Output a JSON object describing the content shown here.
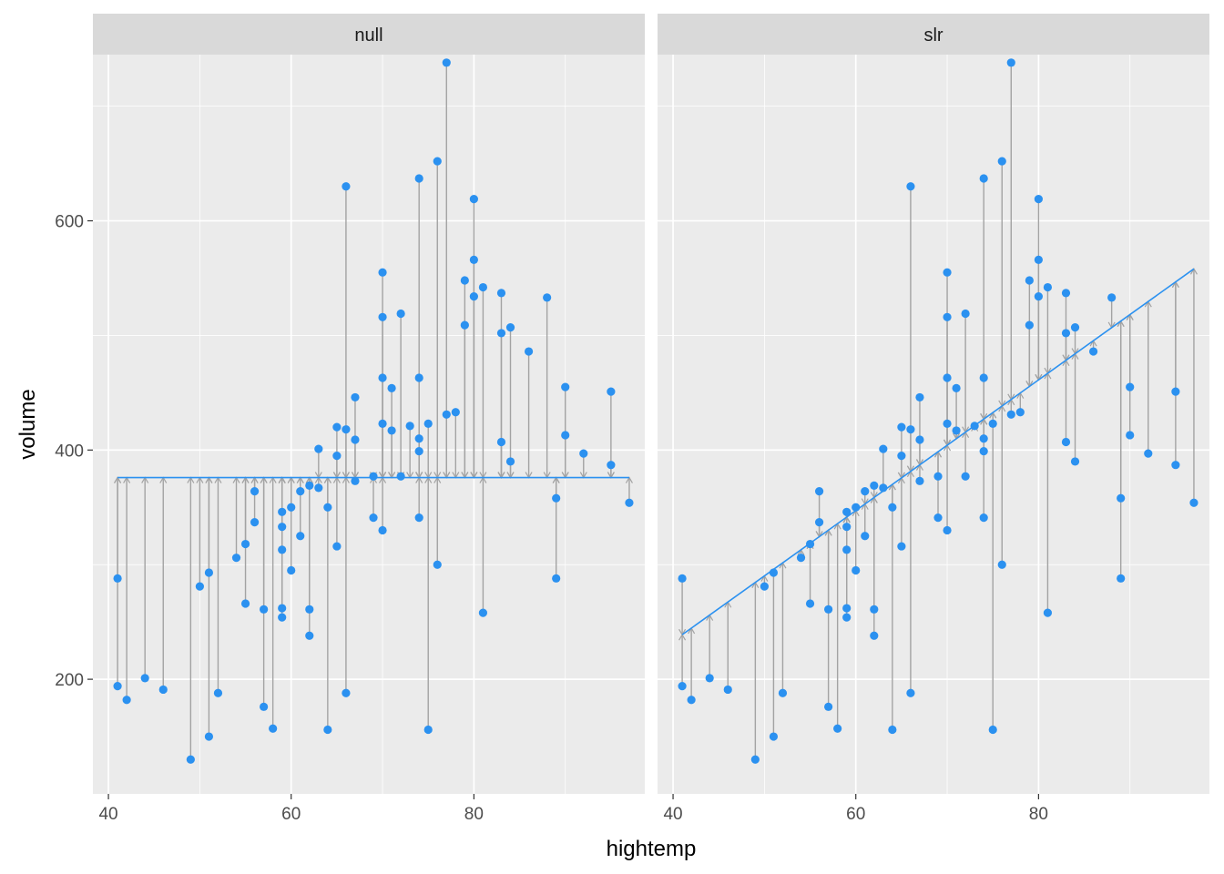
{
  "chart_data": {
    "type": "scatter",
    "facets": [
      "null",
      "slr"
    ],
    "xlabel": "hightemp",
    "ylabel": "volume",
    "x_ticks": [
      40,
      60,
      80
    ],
    "y_ticks": [
      200,
      400,
      600
    ],
    "xlim": [
      38.3,
      98.7
    ],
    "ylim": [
      100,
      745
    ],
    "null_mean": 376,
    "slr": {
      "intercept": 5.2,
      "slope": 5.7
    },
    "grid": true,
    "colors": {
      "point": "#2B91F0",
      "fit": "#2B91F0",
      "residual": "#A3A3A3",
      "panel": "#EBEBEB",
      "strip": "#D9D9D9",
      "grid": "#ffffff"
    },
    "points": [
      {
        "x": 41,
        "y": 288
      },
      {
        "x": 41,
        "y": 194
      },
      {
        "x": 42,
        "y": 182
      },
      {
        "x": 44,
        "y": 201
      },
      {
        "x": 46,
        "y": 191
      },
      {
        "x": 49,
        "y": 130
      },
      {
        "x": 50,
        "y": 281
      },
      {
        "x": 51,
        "y": 293
      },
      {
        "x": 51,
        "y": 150
      },
      {
        "x": 52,
        "y": 188
      },
      {
        "x": 54,
        "y": 306
      },
      {
        "x": 55,
        "y": 318
      },
      {
        "x": 55,
        "y": 266
      },
      {
        "x": 56,
        "y": 364
      },
      {
        "x": 56,
        "y": 337
      },
      {
        "x": 57,
        "y": 261
      },
      {
        "x": 57,
        "y": 176
      },
      {
        "x": 58,
        "y": 157
      },
      {
        "x": 59,
        "y": 346
      },
      {
        "x": 59,
        "y": 333
      },
      {
        "x": 59,
        "y": 313
      },
      {
        "x": 59,
        "y": 262
      },
      {
        "x": 59,
        "y": 254
      },
      {
        "x": 60,
        "y": 350
      },
      {
        "x": 60,
        "y": 295
      },
      {
        "x": 61,
        "y": 364
      },
      {
        "x": 61,
        "y": 325
      },
      {
        "x": 62,
        "y": 369
      },
      {
        "x": 62,
        "y": 261
      },
      {
        "x": 62,
        "y": 238
      },
      {
        "x": 63,
        "y": 401
      },
      {
        "x": 63,
        "y": 367
      },
      {
        "x": 64,
        "y": 350
      },
      {
        "x": 64,
        "y": 156
      },
      {
        "x": 65,
        "y": 420
      },
      {
        "x": 65,
        "y": 395
      },
      {
        "x": 65,
        "y": 316
      },
      {
        "x": 66,
        "y": 630
      },
      {
        "x": 66,
        "y": 418
      },
      {
        "x": 66,
        "y": 188
      },
      {
        "x": 67,
        "y": 446
      },
      {
        "x": 67,
        "y": 409
      },
      {
        "x": 67,
        "y": 373
      },
      {
        "x": 69,
        "y": 377
      },
      {
        "x": 69,
        "y": 341
      },
      {
        "x": 70,
        "y": 555
      },
      {
        "x": 70,
        "y": 516
      },
      {
        "x": 70,
        "y": 463
      },
      {
        "x": 70,
        "y": 423
      },
      {
        "x": 70,
        "y": 330
      },
      {
        "x": 71,
        "y": 454
      },
      {
        "x": 71,
        "y": 417
      },
      {
        "x": 72,
        "y": 519
      },
      {
        "x": 72,
        "y": 377
      },
      {
        "x": 73,
        "y": 421
      },
      {
        "x": 74,
        "y": 637
      },
      {
        "x": 74,
        "y": 463
      },
      {
        "x": 74,
        "y": 410
      },
      {
        "x": 74,
        "y": 399
      },
      {
        "x": 74,
        "y": 341
      },
      {
        "x": 75,
        "y": 423
      },
      {
        "x": 75,
        "y": 156
      },
      {
        "x": 76,
        "y": 652
      },
      {
        "x": 76,
        "y": 300
      },
      {
        "x": 77,
        "y": 738
      },
      {
        "x": 77,
        "y": 431
      },
      {
        "x": 78,
        "y": 433
      },
      {
        "x": 79,
        "y": 548
      },
      {
        "x": 79,
        "y": 509
      },
      {
        "x": 80,
        "y": 619
      },
      {
        "x": 80,
        "y": 566
      },
      {
        "x": 80,
        "y": 534
      },
      {
        "x": 81,
        "y": 542
      },
      {
        "x": 81,
        "y": 258
      },
      {
        "x": 83,
        "y": 537
      },
      {
        "x": 83,
        "y": 502
      },
      {
        "x": 83,
        "y": 407
      },
      {
        "x": 84,
        "y": 507
      },
      {
        "x": 84,
        "y": 390
      },
      {
        "x": 86,
        "y": 486
      },
      {
        "x": 88,
        "y": 533
      },
      {
        "x": 89,
        "y": 358
      },
      {
        "x": 89,
        "y": 288
      },
      {
        "x": 90,
        "y": 455
      },
      {
        "x": 90,
        "y": 413
      },
      {
        "x": 92,
        "y": 397
      },
      {
        "x": 95,
        "y": 451
      },
      {
        "x": 95,
        "y": 387
      },
      {
        "x": 97,
        "y": 354
      }
    ]
  }
}
